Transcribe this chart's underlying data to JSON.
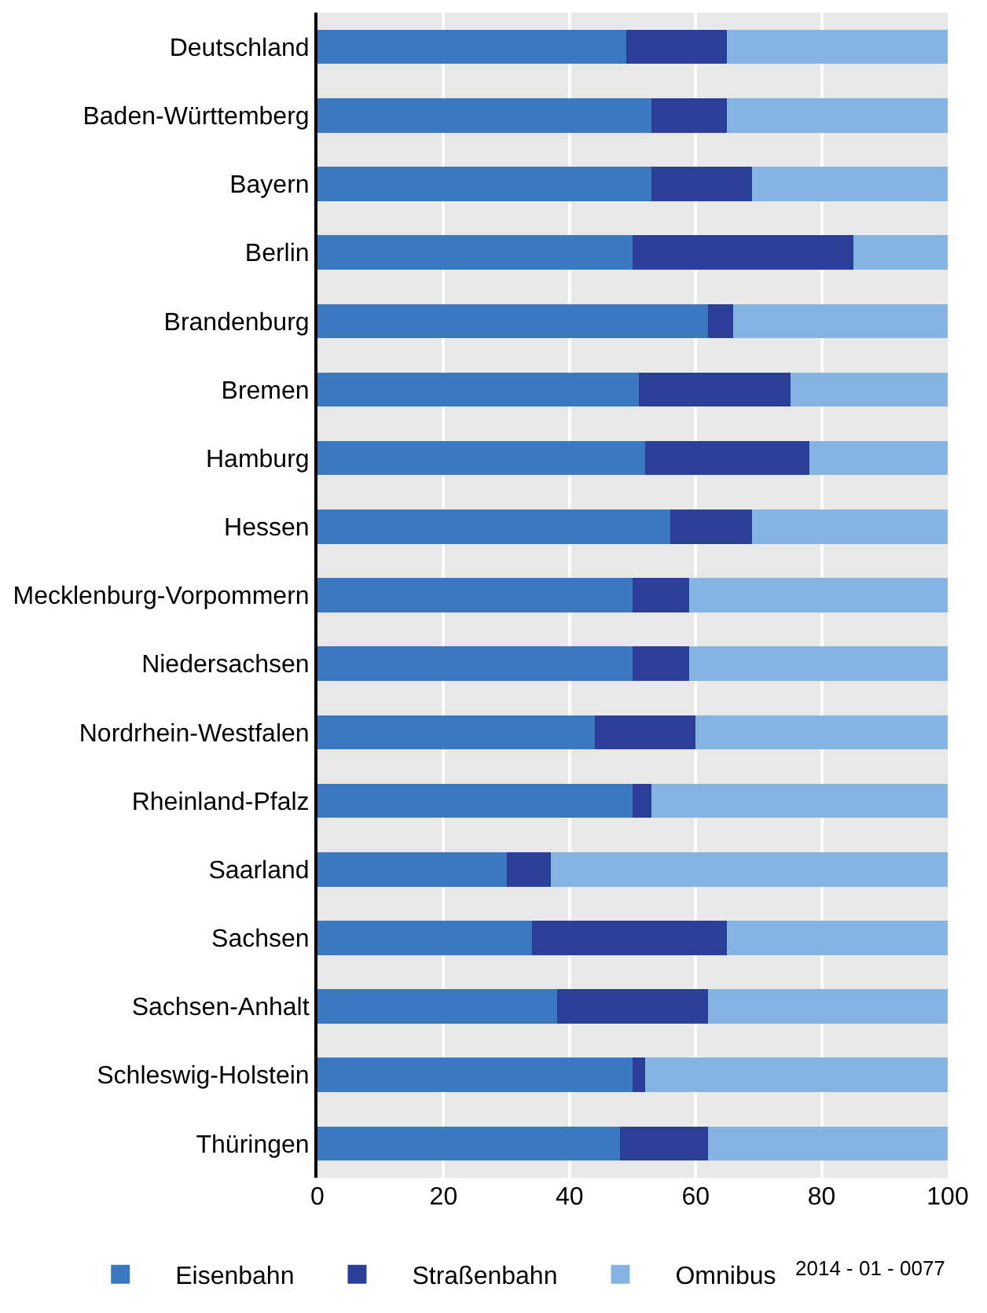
{
  "chart_data": {
    "type": "bar",
    "orientation": "horizontal",
    "stacked": true,
    "categories": [
      "Deutschland",
      "Baden-Württemberg",
      "Bayern",
      "Berlin",
      "Brandenburg",
      "Bremen",
      "Hamburg",
      "Hessen",
      "Mecklenburg-Vorpommern",
      "Niedersachsen",
      "Nordrhein-Westfalen",
      "Rheinland-Pfalz",
      "Saarland",
      "Sachsen",
      "Sachsen-Anhalt",
      "Schleswig-Holstein",
      "Thüringen"
    ],
    "series": [
      {
        "name": "Eisenbahn",
        "color": "#3a78c0",
        "values": [
          49,
          53,
          53,
          50,
          62,
          51,
          52,
          56,
          50,
          50,
          44,
          50,
          30,
          34,
          38,
          50,
          48
        ]
      },
      {
        "name": "Straßenbahn",
        "color": "#2b3f98",
        "values": [
          16,
          12,
          16,
          35,
          4,
          24,
          26,
          13,
          9,
          9,
          16,
          3,
          7,
          31,
          24,
          2,
          14
        ]
      },
      {
        "name": "Omnibus",
        "color": "#86b4e2",
        "values": [
          35,
          35,
          31,
          15,
          34,
          25,
          22,
          31,
          41,
          41,
          40,
          47,
          63,
          35,
          38,
          48,
          38
        ]
      }
    ],
    "xlim": [
      0,
      100
    ],
    "xticks": [
      0,
      20,
      40,
      60,
      80,
      100
    ],
    "grid": "x",
    "legend": "bottom",
    "annotations": [
      "2014 - 01 - 0077"
    ]
  }
}
